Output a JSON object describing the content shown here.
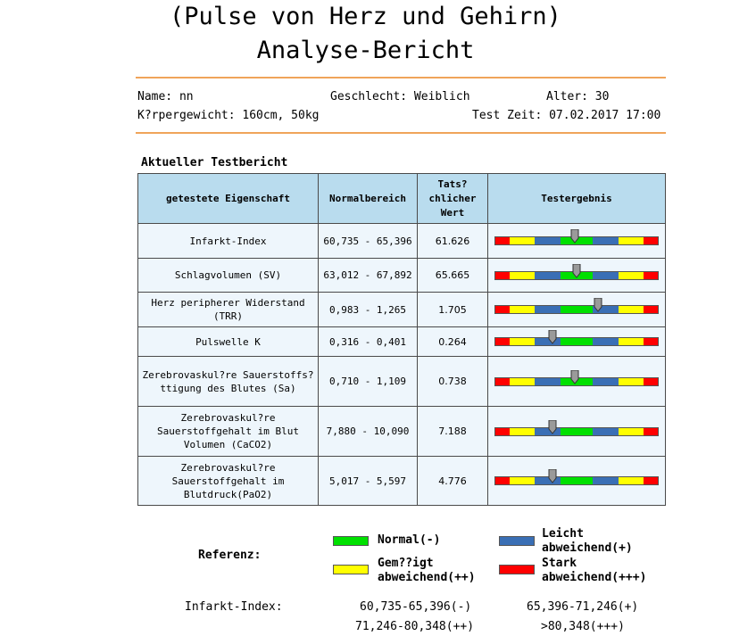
{
  "title_line1": "(Pulse von Herz und Gehirn)",
  "title_line2": "Analyse-Bericht",
  "patient": {
    "name": "Name: nn",
    "gender": "Geschlecht: Weiblich",
    "age": "Alter: 30",
    "body": "K?rpergewicht: 160cm, 50kg",
    "test_time": "Test Zeit: 07.02.2017 17:00"
  },
  "section_title": "Aktueller Testbericht",
  "table": {
    "headers": [
      "getestete Eigenschaft",
      "Normalbereich",
      "Tats? chlicher Wert",
      "Testergebnis"
    ],
    "rows": [
      {
        "name": "Infarkt-Index",
        "range": "60,735 - 65,396",
        "value": "61.626",
        "marker": 0.49
      },
      {
        "name": "Schlagvolumen (SV)",
        "range": "63,012 - 67,892",
        "value": "65.665",
        "marker": 0.5
      },
      {
        "name": "Herz peripherer Widerstand (TRR)",
        "range": "0,983 - 1,265",
        "value": "1.705",
        "marker": 0.63
      },
      {
        "name": "Pulswelle K",
        "range": "0,316 - 0,401",
        "value": "0.264",
        "marker": 0.35
      },
      {
        "name": "Zerebrovaskul?re Sauerstoffs?ttigung des Blutes (Sa)",
        "range": "0,710 - 1,109",
        "value": "0.738",
        "marker": 0.49
      },
      {
        "name": "Zerebrovaskul?re Sauerstoffgehalt im Blut Volumen (CaCO2)",
        "range": "7,880 - 10,090",
        "value": "7.188",
        "marker": 0.35
      },
      {
        "name": "Zerebrovaskul?re Sauerstoffgehalt im Blutdruck(PaO2)",
        "range": "5,017 - 5,597",
        "value": "4.776",
        "marker": 0.35
      }
    ]
  },
  "legend": {
    "title": "Referenz:",
    "normal": "Normal(-)",
    "leicht": "Leicht abweichend(+)",
    "gemaessigt": "Gem??igt abweichend(++)",
    "stark": "Stark abweichend(+++)"
  },
  "reference": {
    "label": "Infarkt-Index:",
    "normal": "60,735-65,396(-)",
    "leicht": "65,396-71,246(+)",
    "gemaessigt": "71,246-80,348(++)",
    "stark": ">80,348(+++)"
  },
  "colors": {
    "rule": "#f0a45a",
    "header_bg": "#b9dcee",
    "cell_bg": "#eef6fc",
    "red": "#ff0000",
    "yellow": "#ffff00",
    "blue": "#3a6fb5",
    "green": "#00e000"
  }
}
